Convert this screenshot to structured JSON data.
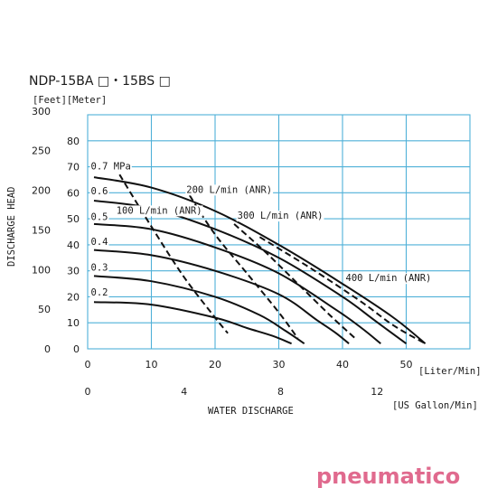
{
  "title": "NDP-15BA □・15BS □",
  "y_units_label": "[Feet][Meter]",
  "brand": {
    "text": "pneumatico",
    "color": "#e06a8e"
  },
  "colors": {
    "grid": "#4fb0d8",
    "curve": "#111111"
  },
  "chart_data": {
    "type": "line",
    "title": "NDP-15BA □・15BS □",
    "xlabel": "WATER  DISCHARGE",
    "ylabel": "DISCHARGE  HEAD",
    "x_unit_primary": "[Liter/Min]",
    "x_unit_secondary": "[US Gallon/Min]",
    "xlim": [
      0,
      60
    ],
    "ylim": [
      0,
      90
    ],
    "x_ticks": [
      0,
      10,
      20,
      30,
      40,
      50
    ],
    "x2_ticks": [
      0,
      4,
      8,
      12
    ],
    "x2_scale_lpm_per_gpm": 3.785,
    "y_ticks_meter": [
      0,
      10,
      20,
      30,
      40,
      50,
      60,
      70,
      80
    ],
    "y_ticks_feet": [
      0,
      50,
      100,
      150,
      200,
      250,
      300
    ],
    "y_feet_per_meter": 3.281,
    "grid": true,
    "series": [
      {
        "name": "0.7 MPa",
        "style": "solid",
        "x": [
          1,
          10,
          20,
          30,
          40,
          48,
          53
        ],
        "y": [
          66,
          62,
          53,
          40,
          25,
          12,
          2
        ]
      },
      {
        "name": "0.6",
        "style": "solid",
        "x": [
          1,
          10,
          20,
          30,
          40,
          45,
          50
        ],
        "y": [
          57,
          54,
          46,
          35,
          20,
          11,
          2
        ]
      },
      {
        "name": "0.5",
        "style": "solid",
        "x": [
          1,
          10,
          20,
          30,
          39,
          43,
          46
        ],
        "y": [
          48,
          46,
          39,
          29,
          15,
          8,
          2
        ]
      },
      {
        "name": "0.4",
        "style": "solid",
        "x": [
          1,
          10,
          20,
          30,
          36,
          39,
          41
        ],
        "y": [
          38,
          36,
          30,
          21,
          11,
          6,
          2
        ]
      },
      {
        "name": "0.3",
        "style": "solid",
        "x": [
          1,
          10,
          20,
          27,
          31,
          34
        ],
        "y": [
          28,
          26,
          20,
          13,
          7,
          2
        ]
      },
      {
        "name": "0.2",
        "style": "solid",
        "x": [
          1,
          10,
          20,
          25,
          29,
          32
        ],
        "y": [
          18,
          17,
          12,
          8,
          5,
          2
        ]
      },
      {
        "name": "100 L/min (ANR)",
        "style": "dashed",
        "x": [
          5,
          10,
          15,
          20,
          22
        ],
        "y": [
          67,
          47,
          28,
          12,
          6
        ]
      },
      {
        "name": "200 L/min (ANR)",
        "style": "dashed",
        "x": [
          16,
          20,
          25,
          30,
          33
        ],
        "y": [
          59,
          44,
          29,
          14,
          4
        ]
      },
      {
        "name": "300 L/min (ANR)",
        "style": "dashed",
        "x": [
          23,
          28,
          33,
          38,
          42
        ],
        "y": [
          48,
          37,
          25,
          13,
          4
        ]
      },
      {
        "name": "400 L/min (ANR)",
        "style": "dashed",
        "x": [
          27,
          35,
          43,
          48,
          53
        ],
        "y": [
          43,
          31,
          18,
          9,
          2
        ]
      }
    ],
    "annotations": [
      {
        "text": "0.7 MPa",
        "x": 0.5,
        "y": 69
      },
      {
        "text": "0.6",
        "x": 0.5,
        "y": 59.5
      },
      {
        "text": "0.5",
        "x": 0.5,
        "y": 49.5
      },
      {
        "text": "0.4",
        "x": 0.5,
        "y": 40
      },
      {
        "text": "0.3",
        "x": 0.5,
        "y": 30
      },
      {
        "text": "0.2",
        "x": 0.5,
        "y": 20.5
      },
      {
        "text": "100 L/min (ANR)",
        "x": 4.5,
        "y": 52
      },
      {
        "text": "200 L/min (ANR)",
        "x": 15.5,
        "y": 60
      },
      {
        "text": "300 L/min (ANR)",
        "x": 23.5,
        "y": 50
      },
      {
        "text": "400 L/min (ANR)",
        "x": 40.5,
        "y": 26
      }
    ]
  }
}
